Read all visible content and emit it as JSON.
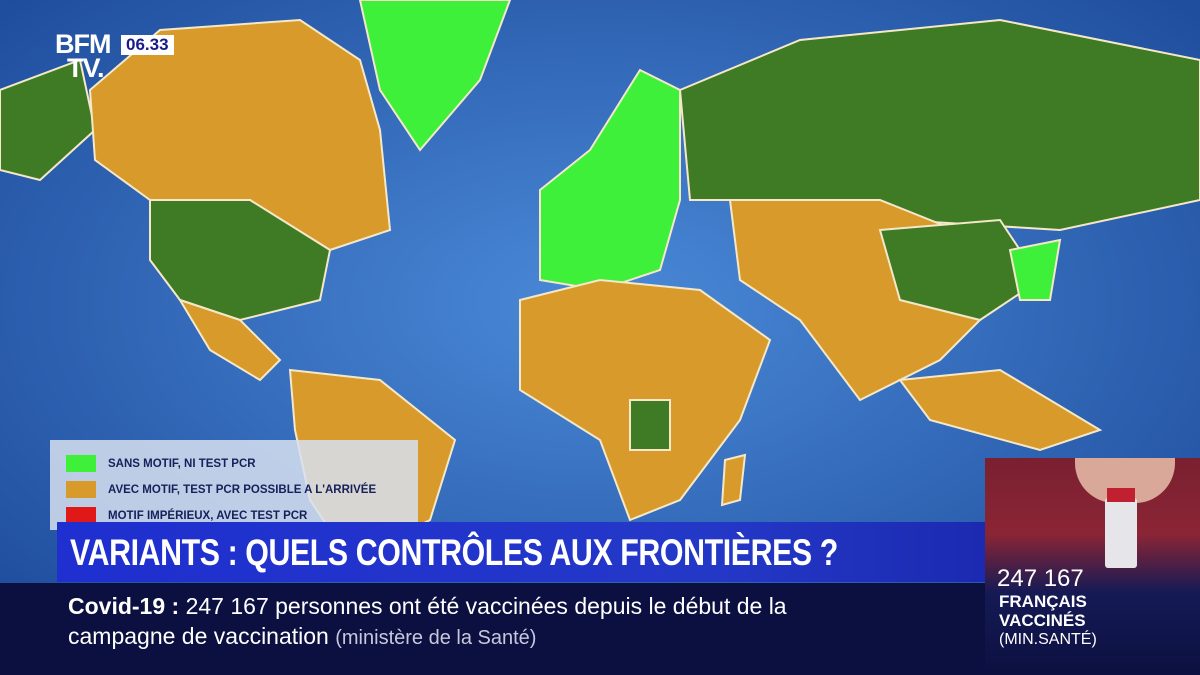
{
  "channel": {
    "logo": "BFM TV.",
    "logo_line1": "BFM",
    "logo_line2": "TV.",
    "time": "06.33"
  },
  "legend": {
    "items": [
      {
        "label": "SANS MOTIF, NI TEST PCR",
        "color": "#3ef03a"
      },
      {
        "label": "AVEC MOTIF, TEST PCR POSSIBLE A L'ARRIVÉE",
        "color": "#d89a2a"
      },
      {
        "label": "MOTIF IMPÉRIEUX, AVEC TEST PCR",
        "color": "#e01818"
      }
    ]
  },
  "map": {
    "ocean_color": "#2a5fb0",
    "land_default_color": "#3f7a25"
  },
  "headline": "VARIANTS : QUELS CONTRÔLES AUX FRONTIÈRES ?",
  "ticker": {
    "topic": "Covid-19",
    "separator": ":",
    "line1": "247 167 personnes ont été vaccinées depuis le début de la",
    "line2": "campagne de vaccination",
    "source": "(ministère de la Santé)"
  },
  "side_panel": {
    "number": "247 167",
    "line1": "FRANÇAIS",
    "line2": "VACCINÉS",
    "line3": "(MIN.SANTÉ)"
  }
}
